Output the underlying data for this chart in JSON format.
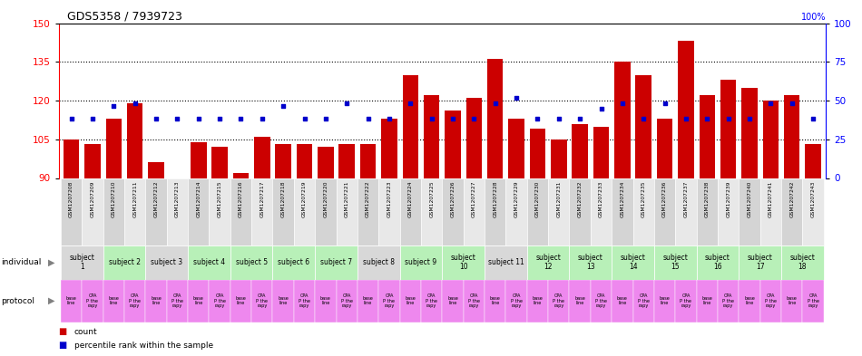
{
  "title": "GDS5358 / 7939723",
  "gsm_labels": [
    "GSM1207208",
    "GSM1207209",
    "GSM1207210",
    "GSM1207211",
    "GSM1207212",
    "GSM1207213",
    "GSM1207214",
    "GSM1207215",
    "GSM1207216",
    "GSM1207217",
    "GSM1207218",
    "GSM1207219",
    "GSM1207220",
    "GSM1207221",
    "GSM1207222",
    "GSM1207223",
    "GSM1207224",
    "GSM1207225",
    "GSM1207226",
    "GSM1207227",
    "GSM1207228",
    "GSM1207229",
    "GSM1207230",
    "GSM1207231",
    "GSM1207232",
    "GSM1207233",
    "GSM1207234",
    "GSM1207235",
    "GSM1207236",
    "GSM1207237",
    "GSM1207238",
    "GSM1207239",
    "GSM1207240",
    "GSM1207241",
    "GSM1207242",
    "GSM1207243"
  ],
  "bar_values": [
    105,
    103,
    113,
    119,
    96,
    90,
    104,
    102,
    92,
    106,
    103,
    103,
    102,
    103,
    103,
    113,
    130,
    122,
    116,
    121,
    136,
    113,
    109,
    105,
    111,
    110,
    135,
    130,
    113,
    143,
    122,
    128,
    125,
    120,
    122,
    103
  ],
  "dot_values": [
    113,
    113,
    118,
    119,
    113,
    113,
    113,
    113,
    113,
    113,
    118,
    113,
    113,
    119,
    113,
    113,
    119,
    113,
    113,
    113,
    119,
    121,
    113,
    113,
    113,
    117,
    119,
    113,
    119,
    113,
    113,
    113,
    113,
    119,
    119,
    113
  ],
  "ylim_left": [
    90,
    150
  ],
  "ylim_right": [
    0,
    100
  ],
  "yticks_left": [
    90,
    105,
    120,
    135,
    150
  ],
  "yticks_right": [
    0,
    25,
    50,
    75,
    100
  ],
  "hlines": [
    105,
    120,
    135
  ],
  "subjects": [
    {
      "label": "subject\n1",
      "bars": [
        0,
        1
      ],
      "color": "#d8d8d8"
    },
    {
      "label": "subject 2",
      "bars": [
        2,
        3
      ],
      "color": "#b8f0b8"
    },
    {
      "label": "subject 3",
      "bars": [
        4,
        5
      ],
      "color": "#d8d8d8"
    },
    {
      "label": "subject 4",
      "bars": [
        6,
        7
      ],
      "color": "#b8f0b8"
    },
    {
      "label": "subject 5",
      "bars": [
        8,
        9
      ],
      "color": "#b8f0b8"
    },
    {
      "label": "subject 6",
      "bars": [
        10,
        11
      ],
      "color": "#b8f0b8"
    },
    {
      "label": "subject 7",
      "bars": [
        12,
        13
      ],
      "color": "#b8f0b8"
    },
    {
      "label": "subject 8",
      "bars": [
        14,
        15
      ],
      "color": "#d8d8d8"
    },
    {
      "label": "subject 9",
      "bars": [
        16,
        17
      ],
      "color": "#b8f0b8"
    },
    {
      "label": "subject\n10",
      "bars": [
        18,
        19
      ],
      "color": "#b8f0b8"
    },
    {
      "label": "subject 11",
      "bars": [
        20,
        21
      ],
      "color": "#d8d8d8"
    },
    {
      "label": "subject\n12",
      "bars": [
        22,
        23
      ],
      "color": "#b8f0b8"
    },
    {
      "label": "subject\n13",
      "bars": [
        24,
        25
      ],
      "color": "#b8f0b8"
    },
    {
      "label": "subject\n14",
      "bars": [
        26,
        27
      ],
      "color": "#b8f0b8"
    },
    {
      "label": "subject\n15",
      "bars": [
        28,
        29
      ],
      "color": "#b8f0b8"
    },
    {
      "label": "subject\n16",
      "bars": [
        30,
        31
      ],
      "color": "#b8f0b8"
    },
    {
      "label": "subject\n17",
      "bars": [
        32,
        33
      ],
      "color": "#b8f0b8"
    },
    {
      "label": "subject\n18",
      "bars": [
        34,
        35
      ],
      "color": "#b8f0b8"
    }
  ],
  "protocol_label_even": "base\nline",
  "protocol_label_odd": "CPA\nP the\nrapy",
  "protocol_color": "#ee88ee",
  "bar_color": "#cc0000",
  "dot_color": "#0000cc",
  "individual_label": "individual",
  "protocol_label": "protocol",
  "legend_count": "count",
  "legend_percentile": "percentile rank within the sample",
  "right_y_top_label": "100%",
  "fig_width": 9.5,
  "fig_height": 3.93,
  "dpi": 100
}
